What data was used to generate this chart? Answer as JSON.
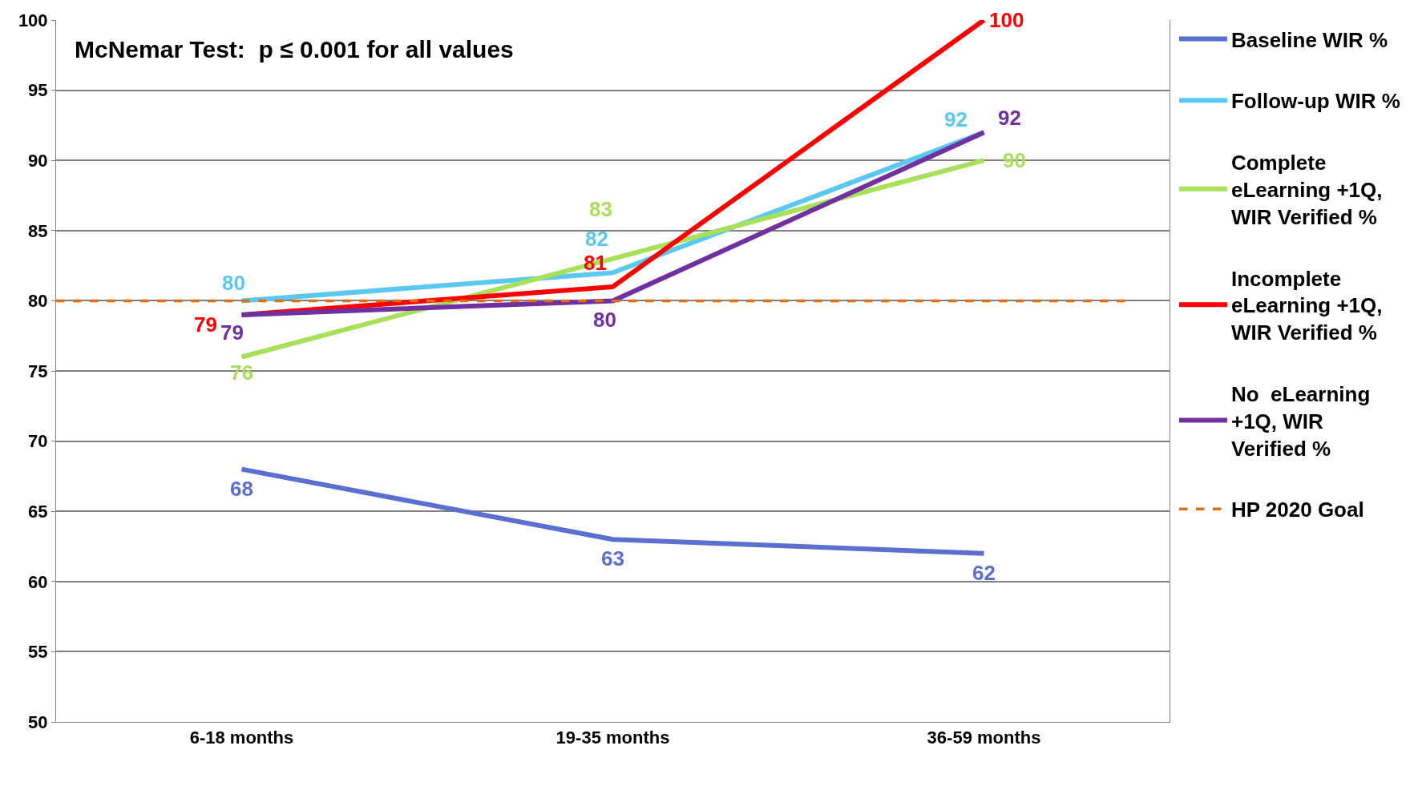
{
  "chart_data": {
    "type": "line",
    "categories": [
      "6-18 months",
      "19-35 months",
      "36-59 months"
    ],
    "series": [
      {
        "name": "Baseline WIR %",
        "color": "#5b6fd0",
        "values": [
          68,
          63,
          62
        ]
      },
      {
        "name": "Follow-up WIR %",
        "color": "#5bc8f0",
        "values": [
          80,
          82,
          92
        ]
      },
      {
        "name": "Complete eLearning +1Q, WIR Verified %",
        "color": "#a8e05a",
        "values": [
          76,
          83,
          90
        ]
      },
      {
        "name": "Incomplete eLearning +1Q, WIR Verified %",
        "color": "#ff0000",
        "values": [
          79,
          81,
          100
        ]
      },
      {
        "name": "No  eLearning +1Q, WIR Verified %",
        "color": "#7030a0",
        "values": [
          79,
          80,
          92
        ]
      }
    ],
    "ylim": [
      50,
      100
    ],
    "yticks": [
      50,
      55,
      60,
      65,
      70,
      75,
      80,
      85,
      90,
      95,
      100
    ],
    "ref_lines": [
      {
        "axis": "y",
        "value": 80,
        "label": "HP 2020 Goal",
        "color": "#e46c0a",
        "line_style": "dashed"
      }
    ],
    "annotations": [
      "McNemar Test:  p ≤ 0.001 for all values"
    ],
    "data_labels": true,
    "grid": "y",
    "legend": "right",
    "marker": "none",
    "line_style": "solid"
  }
}
